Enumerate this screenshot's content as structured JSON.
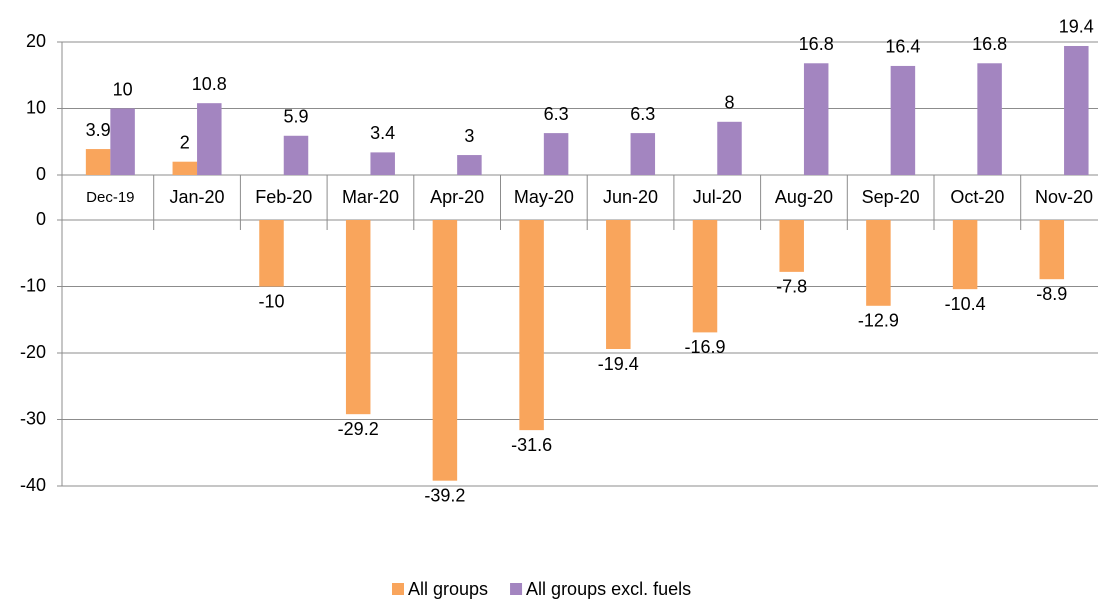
{
  "chart_data": {
    "type": "bar",
    "categories": [
      "Dec-19",
      "Jan-20",
      "Feb-20",
      "Mar-20",
      "Apr-20",
      "May-20",
      "Jun-20",
      "Jul-20",
      "Aug-20",
      "Sep-20",
      "Oct-20",
      "Nov-20"
    ],
    "series": [
      {
        "name": "All groups",
        "color": "#f9a55c",
        "values": [
          3.9,
          2,
          -10,
          -29.2,
          -39.2,
          -31.6,
          -19.4,
          -16.9,
          -7.8,
          -12.9,
          -10.4,
          -8.9
        ]
      },
      {
        "name": "All groups excl. fuels",
        "color": "#a385c0",
        "values": [
          10,
          10.8,
          5.9,
          3.4,
          3,
          6.3,
          6.3,
          8,
          16.8,
          16.4,
          16.8,
          19.4
        ]
      }
    ],
    "axes": [
      {
        "ylim": [
          0,
          20
        ],
        "yticks": [
          0,
          10,
          20
        ]
      },
      {
        "ylim": [
          -40,
          0
        ],
        "yticks": [
          -40,
          -30,
          -20,
          -10,
          0
        ]
      }
    ],
    "grid": true,
    "legend": "bottom"
  }
}
